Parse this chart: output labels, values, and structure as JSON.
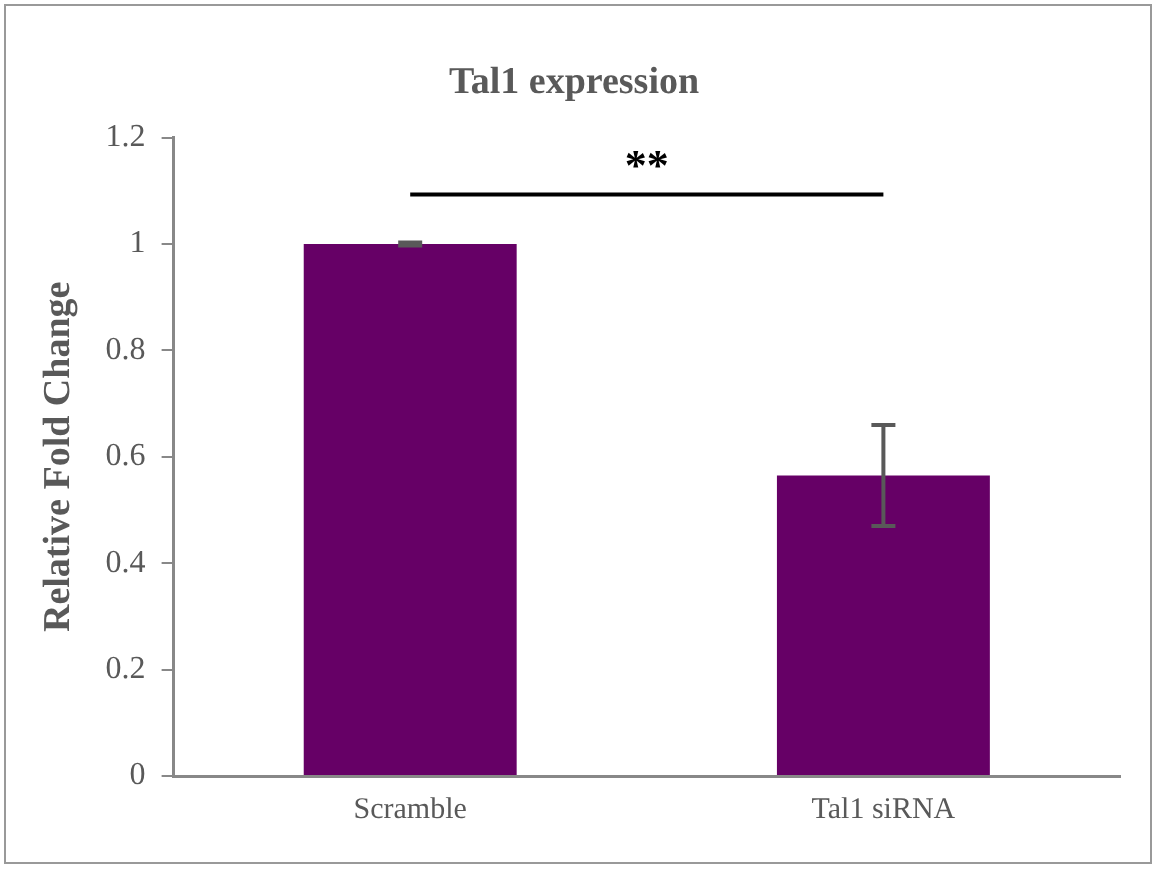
{
  "chart_data": {
    "type": "bar",
    "title": "Tal1 expression",
    "ylabel": "Relative Fold Change",
    "categories": [
      "Scramble",
      "Tal1 siRNA"
    ],
    "values": [
      1.0,
      0.565
    ],
    "errors": [
      0.003,
      0.095
    ],
    "color": "#660066",
    "ylim": [
      0,
      1.2
    ],
    "yticks": [
      0,
      0.2,
      0.4,
      0.6,
      0.8,
      1,
      1.2
    ],
    "grid": false,
    "legend": false,
    "annotations": [
      "**"
    ]
  }
}
